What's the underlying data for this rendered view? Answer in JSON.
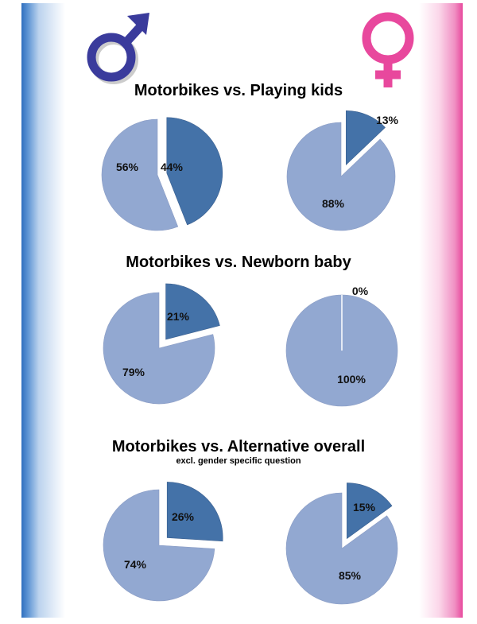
{
  "colors": {
    "male_symbol": "#3a3b9c",
    "female_symbol": "#e8489d",
    "slice_light": "#92a8d1",
    "slice_dark": "#4472a8",
    "edge_left_blue": "#2f6fbf",
    "edge_right_pink": "#e8489d"
  },
  "icons": {
    "male": "male-symbol-icon",
    "female": "female-symbol-icon"
  },
  "chart_data": [
    {
      "type": "pie",
      "title": "Motorbikes vs. Playing kids",
      "group": "male",
      "slices": [
        {
          "value": 44,
          "label": "44%",
          "exploded": true
        },
        {
          "value": 56,
          "label": "56%",
          "exploded": false
        }
      ]
    },
    {
      "type": "pie",
      "title": "Motorbikes vs. Playing kids",
      "group": "female",
      "slices": [
        {
          "value": 13,
          "label": "13%",
          "exploded": true
        },
        {
          "value": 88,
          "label": "88%",
          "exploded": false
        }
      ]
    },
    {
      "type": "pie",
      "title": "Motorbikes vs. Newborn baby",
      "group": "male",
      "slices": [
        {
          "value": 21,
          "label": "21%",
          "exploded": true
        },
        {
          "value": 79,
          "label": "79%",
          "exploded": false
        }
      ]
    },
    {
      "type": "pie",
      "title": "Motorbikes vs. Newborn baby",
      "group": "female",
      "slices": [
        {
          "value": 0,
          "label": "0%",
          "exploded": true
        },
        {
          "value": 100,
          "label": "100%",
          "exploded": false
        }
      ]
    },
    {
      "type": "pie",
      "title": "Motorbikes vs. Alternative overall",
      "subtitle": "excl. gender specific question",
      "group": "male",
      "slices": [
        {
          "value": 26,
          "label": "26%",
          "exploded": true
        },
        {
          "value": 74,
          "label": "74%",
          "exploded": false
        }
      ]
    },
    {
      "type": "pie",
      "title": "Motorbikes vs. Alternative overall",
      "subtitle": "excl. gender specific question",
      "group": "female",
      "slices": [
        {
          "value": 15,
          "label": "15%",
          "exploded": true
        },
        {
          "value": 85,
          "label": "85%",
          "exploded": false
        }
      ]
    }
  ],
  "sections": [
    {
      "title": "Motorbikes vs. Playing kids"
    },
    {
      "title": "Motorbikes vs. Newborn baby"
    },
    {
      "title": "Motorbikes vs. Alternative overall",
      "subtitle": "excl. gender specific question"
    }
  ]
}
